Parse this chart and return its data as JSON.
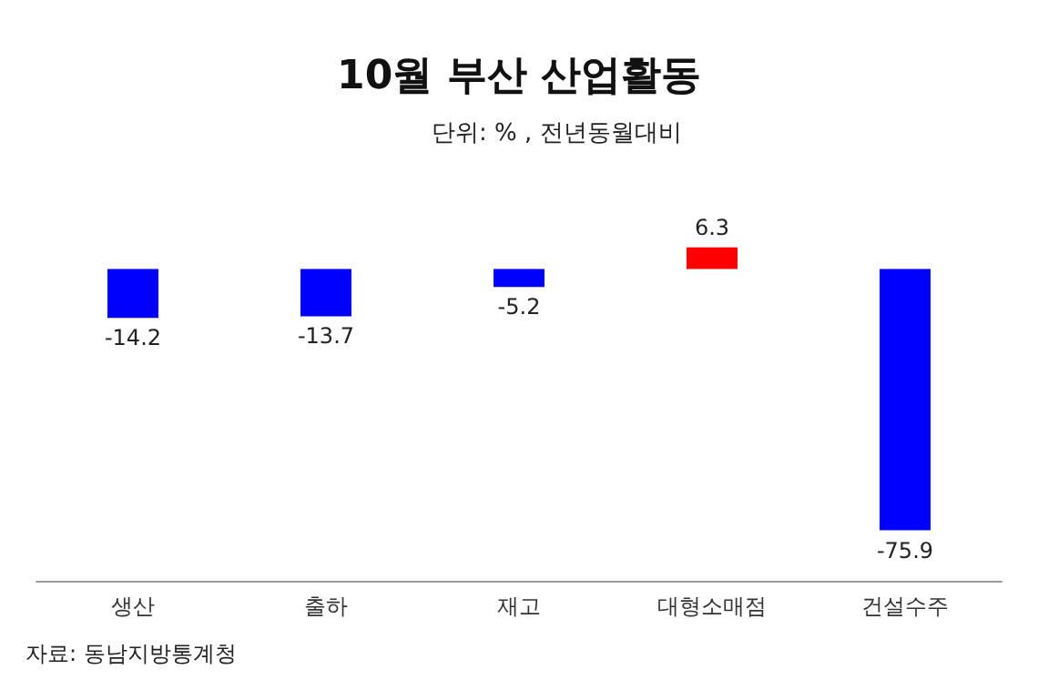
{
  "chart_data": {
    "type": "bar",
    "title": "10월 부산 산업활동",
    "subtitle": "단위: % , 전년동월대비",
    "categories": [
      "생산",
      "출하",
      "재고",
      "대형소매점",
      "건설수주"
    ],
    "values": [
      -14.2,
      -13.7,
      -5.2,
      6.3,
      -75.9
    ],
    "colors": [
      "#0000ff",
      "#0000ff",
      "#0000ff",
      "#ff0000",
      "#0000ff"
    ],
    "data_labels": true,
    "annotations": [
      "자료: 동남지방통계청"
    ]
  }
}
